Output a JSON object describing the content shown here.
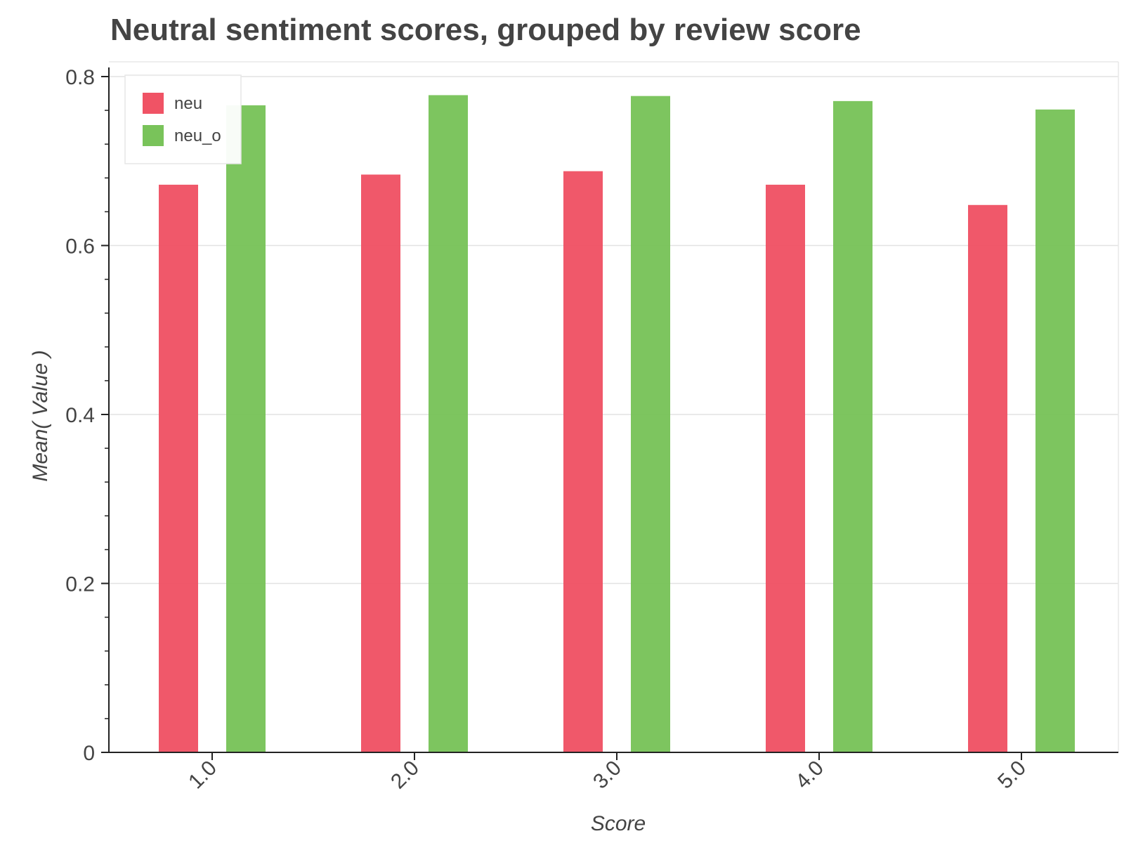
{
  "chart_data": {
    "type": "bar",
    "title": "Neutral sentiment scores, grouped by review score",
    "xlabel": "Score",
    "ylabel": "Mean( Value )",
    "categories": [
      "1.0",
      "2.0",
      "3.0",
      "4.0",
      "5.0"
    ],
    "series": [
      {
        "name": "neu",
        "color": "#F05365",
        "values": [
          0.672,
          0.684,
          0.688,
          0.672,
          0.648
        ]
      },
      {
        "name": "neu_o",
        "color": "#79C35A",
        "values": [
          0.766,
          0.778,
          0.777,
          0.771,
          0.761
        ]
      }
    ],
    "ylim": [
      0,
      0.8
    ],
    "yticks": [
      0,
      0.2,
      0.4,
      0.6,
      0.8
    ],
    "ytick_labels": [
      "0",
      "0.2",
      "0.4",
      "0.6",
      "0.8"
    ],
    "grid": "horizontal",
    "legend_position": "top-left"
  }
}
